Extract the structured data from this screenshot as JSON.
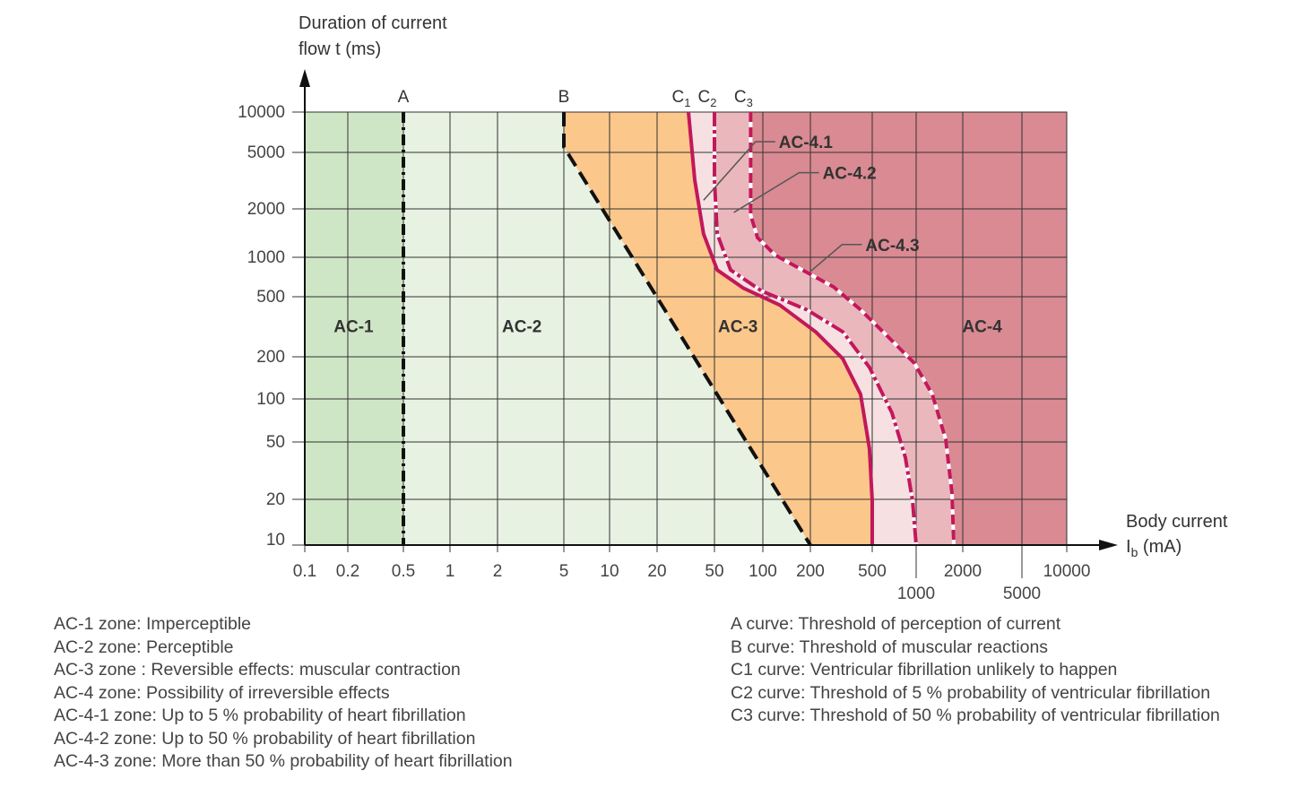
{
  "chart_data": {
    "type": "area",
    "title": "",
    "ylabel_lines": [
      "Duration of current",
      "flow t (ms)"
    ],
    "xlabel_lines": [
      "Body current",
      "I",
      "b",
      " (mA)"
    ],
    "x_scale": "log",
    "y_scale": "log",
    "xlim": [
      0.1,
      10000
    ],
    "ylim": [
      10,
      10000
    ],
    "grid": true,
    "x_ticks": [
      {
        "value": 0.1,
        "label": "0.1",
        "row": 1
      },
      {
        "value": 0.2,
        "label": "0.2",
        "row": 1
      },
      {
        "value": 0.5,
        "label": "0.5",
        "row": 1
      },
      {
        "value": 1,
        "label": "1",
        "row": 1
      },
      {
        "value": 2,
        "label": "2",
        "row": 1
      },
      {
        "value": 5,
        "label": "5",
        "row": 1
      },
      {
        "value": 10,
        "label": "10",
        "row": 1
      },
      {
        "value": 20,
        "label": "20",
        "row": 1
      },
      {
        "value": 50,
        "label": "50",
        "row": 1
      },
      {
        "value": 100,
        "label": "100",
        "row": 1
      },
      {
        "value": 200,
        "label": "200",
        "row": 1
      },
      {
        "value": 500,
        "label": "500",
        "row": 1
      },
      {
        "value": 1000,
        "label": "1000",
        "row": 2
      },
      {
        "value": 2000,
        "label": "2000",
        "row": 1
      },
      {
        "value": 5000,
        "label": "5000",
        "row": 2
      },
      {
        "value": 10000,
        "label": "10000",
        "row": 1
      }
    ],
    "y_ticks": [
      {
        "value": 10,
        "label": "10"
      },
      {
        "value": 20,
        "label": "20"
      },
      {
        "value": 50,
        "label": "50"
      },
      {
        "value": 100,
        "label": "100"
      },
      {
        "value": 200,
        "label": "200"
      },
      {
        "value": 500,
        "label": "500"
      },
      {
        "value": 1000,
        "label": "1000"
      },
      {
        "value": 2000,
        "label": "2000"
      },
      {
        "value": 5000,
        "label": "5000"
      },
      {
        "value": 10000,
        "label": "10000"
      }
    ],
    "curves": {
      "A": {
        "label": "A",
        "style": "dash-dot-black",
        "points": [
          [
            0.5,
            10000
          ],
          [
            0.5,
            10
          ]
        ]
      },
      "B": {
        "label": "B",
        "style": "dashed-black",
        "points": [
          [
            5,
            10000
          ],
          [
            5,
            5500
          ],
          [
            200,
            10
          ]
        ]
      },
      "C1": {
        "label": "C",
        "sub": "1",
        "style": "solid",
        "points": [
          [
            33,
            10000
          ],
          [
            36.5,
            3200
          ],
          [
            42,
            1400
          ],
          [
            52,
            800
          ],
          [
            76,
            580
          ],
          [
            128,
            440
          ],
          [
            216,
            293
          ],
          [
            323,
            194
          ],
          [
            421,
            108
          ],
          [
            480,
            45
          ],
          [
            500,
            19.5
          ],
          [
            500,
            10
          ]
        ]
      },
      "C2": {
        "label": "C",
        "sub": "2",
        "style": "dash-dot",
        "points": [
          [
            50,
            10000
          ],
          [
            50,
            3200
          ],
          [
            52,
            1400
          ],
          [
            63,
            800
          ],
          [
            99,
            550
          ],
          [
            190,
            410
          ],
          [
            323,
            293
          ],
          [
            480,
            168
          ],
          [
            683,
            80
          ],
          [
            844,
            39
          ],
          [
            945,
            19.5
          ],
          [
            1000,
            10
          ]
        ]
      },
      "C3": {
        "label": "C",
        "sub": "3",
        "style": "dashed",
        "points": [
          [
            84,
            10000
          ],
          [
            84,
            1830
          ],
          [
            92.6,
            1326
          ],
          [
            120,
            1030
          ],
          [
            178,
            800
          ],
          [
            282,
            595
          ],
          [
            421,
            410
          ],
          [
            636,
            274
          ],
          [
            972,
            180
          ],
          [
            1271,
            108
          ],
          [
            1552,
            52
          ],
          [
            1705,
            22
          ],
          [
            1750,
            10
          ]
        ]
      }
    },
    "zones": [
      {
        "name": "AC-1",
        "color": "#cfe6c6"
      },
      {
        "name": "AC-2",
        "color": "#e7f2e2"
      },
      {
        "name": "AC-3",
        "color": "#fbc78b"
      },
      {
        "name": "AC-4.1",
        "color": "#f6e0e1"
      },
      {
        "name": "AC-4.2",
        "color": "#e9b7bc"
      },
      {
        "name": "AC-4",
        "color": "#d98a92"
      }
    ],
    "zone_labels": [
      {
        "text": "AC-1",
        "x": 0.22,
        "y": 320
      },
      {
        "text": "AC-2",
        "x": 2.8,
        "y": 320
      },
      {
        "text": "AC-3",
        "x": 70,
        "y": 320
      },
      {
        "text": "AC-4",
        "x": 2700,
        "y": 320
      }
    ],
    "callouts": [
      {
        "text": "AC-4.1",
        "from": [
          42,
          2300
        ],
        "to": [
          90,
          6000
        ]
      },
      {
        "text": "AC-4.2",
        "from": [
          66,
          1900
        ],
        "to": [
          170,
          3600
        ]
      },
      {
        "text": "AC-4.3",
        "from": [
          200,
          780
        ],
        "to": [
          320,
          1200
        ]
      }
    ],
    "curve_color": "#c2185b"
  },
  "legend_left": [
    "AC-1 zone: Imperceptible",
    "AC-2 zone: Perceptible",
    "AC-3 zone : Reversible effects: muscular contraction",
    "AC-4 zone: Possibility of irreversible effects",
    "AC-4-1 zone: Up to 5 % probability of heart fibrillation",
    "AC-4-2 zone: Up to 50 % probability of heart fibrillation",
    "AC-4-3 zone: More than 50 % probability of heart fibrillation"
  ],
  "legend_right": [
    "A curve: Threshold of perception of current",
    "B curve: Threshold of muscular reactions",
    "C1 curve: Ventricular fibrillation unlikely to happen",
    "C2 curve: Threshold of 5 % probability of ventricular fibrillation",
    "C3 curve: Threshold of 50 % probability of ventricular fibrillation"
  ]
}
